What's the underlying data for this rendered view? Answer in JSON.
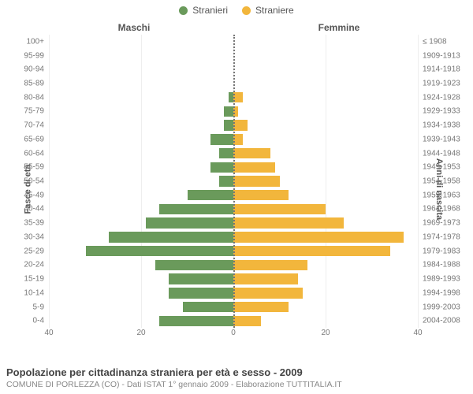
{
  "chart": {
    "type": "population-pyramid",
    "legend": {
      "male": {
        "label": "Stranieri",
        "color": "#6a9a5b"
      },
      "female": {
        "label": "Straniere",
        "color": "#f2b63c"
      }
    },
    "headers": {
      "left": "Maschi",
      "right": "Femmine"
    },
    "yaxis_left_label": "Fasce di età",
    "yaxis_right_label": "Anni di nascita",
    "x_max": 40,
    "x_ticks_left": [
      40,
      20,
      0
    ],
    "x_ticks_right": [
      0,
      20,
      40
    ],
    "grid_color": "#eeeeee",
    "center_line_color": "#777777",
    "rows": [
      {
        "age": "100+",
        "years": "≤ 1908",
        "m": 0,
        "f": 0
      },
      {
        "age": "95-99",
        "years": "1909-1913",
        "m": 0,
        "f": 0
      },
      {
        "age": "90-94",
        "years": "1914-1918",
        "m": 0,
        "f": 0
      },
      {
        "age": "85-89",
        "years": "1919-1923",
        "m": 0,
        "f": 0
      },
      {
        "age": "80-84",
        "years": "1924-1928",
        "m": 1,
        "f": 2
      },
      {
        "age": "75-79",
        "years": "1929-1933",
        "m": 2,
        "f": 1
      },
      {
        "age": "70-74",
        "years": "1934-1938",
        "m": 2,
        "f": 3
      },
      {
        "age": "65-69",
        "years": "1939-1943",
        "m": 5,
        "f": 2
      },
      {
        "age": "60-64",
        "years": "1944-1948",
        "m": 3,
        "f": 8
      },
      {
        "age": "55-59",
        "years": "1949-1953",
        "m": 5,
        "f": 9
      },
      {
        "age": "50-54",
        "years": "1954-1958",
        "m": 3,
        "f": 10
      },
      {
        "age": "45-49",
        "years": "1959-1963",
        "m": 10,
        "f": 12
      },
      {
        "age": "40-44",
        "years": "1964-1968",
        "m": 16,
        "f": 20
      },
      {
        "age": "35-39",
        "years": "1969-1973",
        "m": 19,
        "f": 24
      },
      {
        "age": "30-34",
        "years": "1974-1978",
        "m": 27,
        "f": 37
      },
      {
        "age": "25-29",
        "years": "1979-1983",
        "m": 32,
        "f": 34
      },
      {
        "age": "20-24",
        "years": "1984-1988",
        "m": 17,
        "f": 16
      },
      {
        "age": "15-19",
        "years": "1989-1993",
        "m": 14,
        "f": 14
      },
      {
        "age": "10-14",
        "years": "1994-1998",
        "m": 14,
        "f": 15
      },
      {
        "age": "5-9",
        "years": "1999-2003",
        "m": 11,
        "f": 12
      },
      {
        "age": "0-4",
        "years": "2004-2008",
        "m": 16,
        "f": 6
      }
    ],
    "footer": {
      "title": "Popolazione per cittadinanza straniera per età e sesso - 2009",
      "subtitle": "COMUNE DI PORLEZZA (CO) - Dati ISTAT 1° gennaio 2009 - Elaborazione TUTTITALIA.IT"
    }
  }
}
